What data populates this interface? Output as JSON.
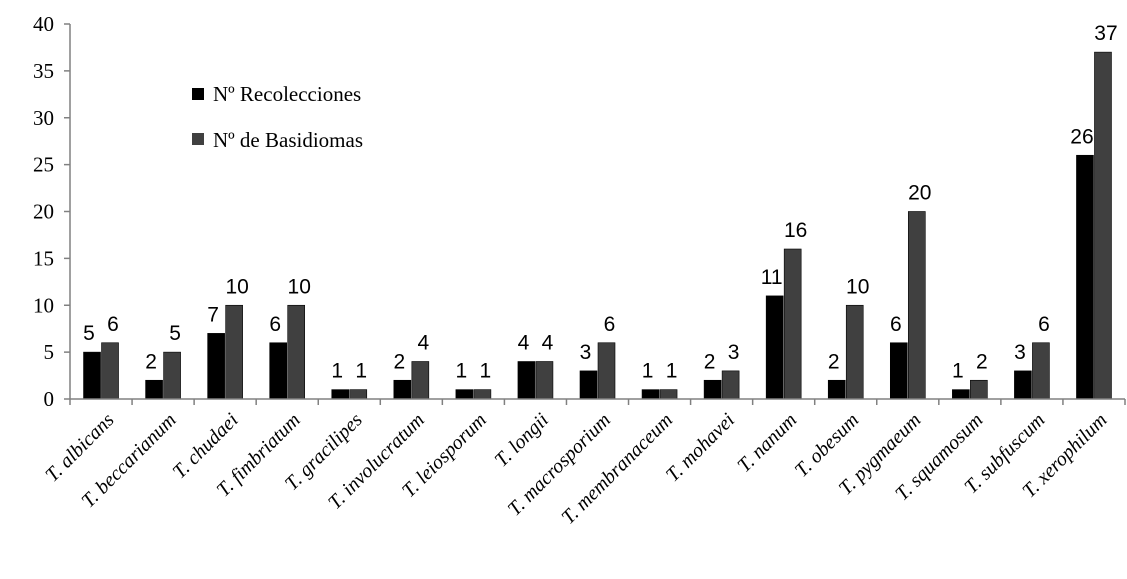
{
  "chart_data": {
    "type": "bar",
    "title": "",
    "xlabel": "",
    "ylabel": "",
    "ylim": [
      0,
      40
    ],
    "yticks": [
      0,
      5,
      10,
      15,
      20,
      25,
      30,
      35,
      40
    ],
    "grid": false,
    "legend_position": "top-left",
    "categories": [
      "T. albicans",
      "T. beccarianum",
      "T. chudaei",
      "T. fimbriatum",
      "T. gracilipes",
      "T. involucratum",
      "T. leiosporum",
      "T. longii",
      "T. macrosporium",
      "T. membranaceum",
      "T. mohavei",
      "T. nanum",
      "T. obesum",
      "T. pygmaeum",
      "T. squamosum",
      "T. subfuscum",
      "T. xerophilum"
    ],
    "series": [
      {
        "name": "Nº Recolecciones",
        "color": "#000000",
        "values": [
          5,
          2,
          7,
          6,
          1,
          2,
          1,
          4,
          3,
          1,
          2,
          11,
          2,
          6,
          1,
          3,
          26
        ]
      },
      {
        "name": "Nº de Basidiomas",
        "color": "#404040",
        "values": [
          6,
          5,
          10,
          10,
          1,
          4,
          1,
          4,
          6,
          1,
          3,
          16,
          10,
          20,
          2,
          6,
          37
        ]
      }
    ]
  }
}
